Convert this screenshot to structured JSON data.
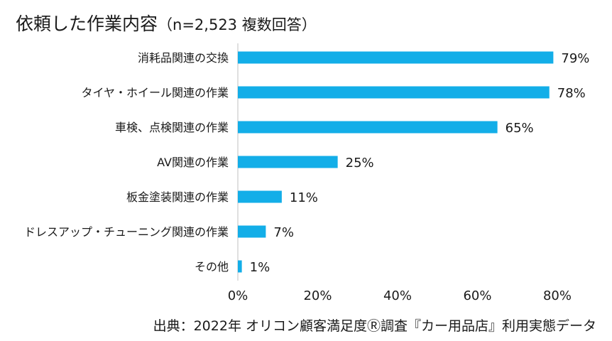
{
  "title": {
    "main": "依頼した作業内容",
    "note": "（n=2,523 複数回答）"
  },
  "source": "出典：2022年 オリコン顧客満足度Ⓡ調査『カー用品店』利用実態データ",
  "colors": {
    "bar": "#13aee8",
    "text": "#1a1a1a",
    "axis": "#bfbfbf"
  },
  "chart_data": {
    "type": "bar",
    "orientation": "horizontal",
    "title": "依頼した作業内容（n=2,523 複数回答）",
    "xlabel": "",
    "ylabel": "",
    "xlim": [
      0,
      80
    ],
    "grid": false,
    "categories": [
      "消耗品関連の交換",
      "タイヤ・ホイール関連の作業",
      "車検、点検関連の作業",
      "AV関連の作業",
      "板金塗装関連の作業",
      "ドレスアップ・チューニング関連の作業",
      "その他"
    ],
    "values": [
      79,
      78,
      65,
      25,
      11,
      7,
      1
    ],
    "value_labels": [
      "79%",
      "78%",
      "65%",
      "25%",
      "11%",
      "7%",
      "1%"
    ],
    "ticks": [
      0,
      20,
      40,
      60,
      80
    ],
    "tick_labels": [
      "0%",
      "20%",
      "40%",
      "60%",
      "80%"
    ]
  }
}
